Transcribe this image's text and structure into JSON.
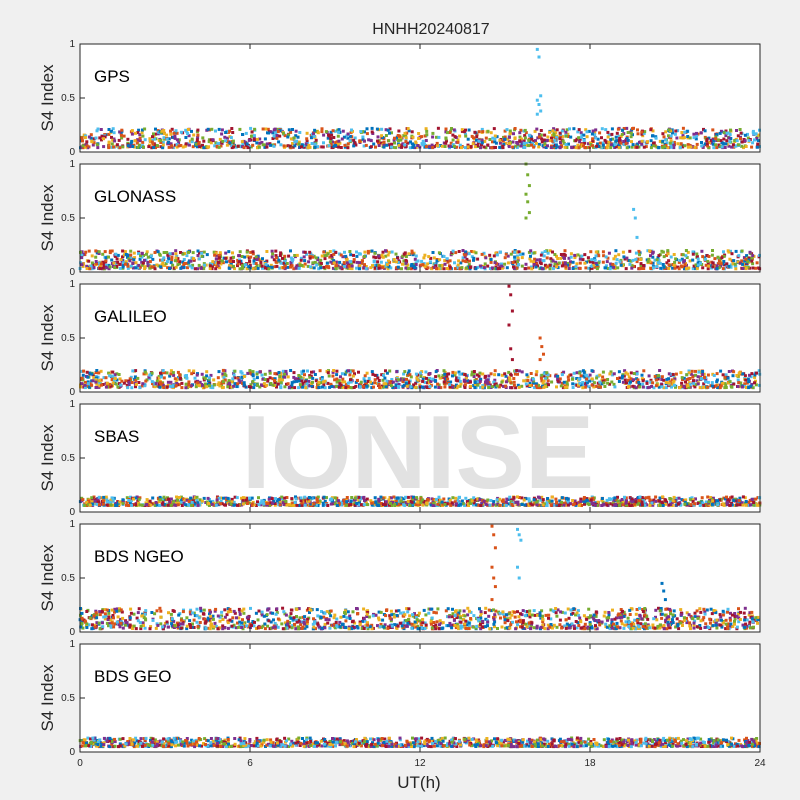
{
  "figure": {
    "title": "HNHH20240817",
    "xlabel": "UT(h)",
    "watermark": "IONISE",
    "background_color": "#f0f0f0",
    "axes_color": "#ffffff"
  },
  "chart_data": {
    "type": "scatter",
    "title": "HNHH20240817",
    "xlabel": "UT(h)",
    "ylabel": "S4 Index",
    "xlim": [
      0,
      24
    ],
    "ylim": [
      0,
      1
    ],
    "xticks": [
      "0",
      "6",
      "12",
      "18",
      "24"
    ],
    "yticks": [
      "0",
      "0.5",
      "1"
    ],
    "grid": false,
    "colors": [
      "#0072bd",
      "#d95319",
      "#edb120",
      "#7e2f8e",
      "#77ac30",
      "#4dbeee",
      "#a2142f"
    ],
    "panels": [
      {
        "label": "GPS",
        "baseline": [
          0.04,
          0.22
        ],
        "spikes": [
          {
            "x": 16.2,
            "values": [
              0.95,
              0.88,
              0.52,
              0.48,
              0.44,
              0.38,
              0.35
            ],
            "color": "#4dbeee"
          }
        ]
      },
      {
        "label": "GLONASS",
        "baseline": [
          0.03,
          0.2
        ],
        "spikes": [
          {
            "x": 15.8,
            "values": [
              1.0,
              0.9,
              0.8,
              0.72,
              0.65,
              0.55,
              0.5
            ],
            "color": "#77ac30"
          },
          {
            "x": 19.6,
            "values": [
              0.58,
              0.5,
              0.32
            ],
            "color": "#4dbeee"
          }
        ]
      },
      {
        "label": "GALILEO",
        "baseline": [
          0.04,
          0.2
        ],
        "spikes": [
          {
            "x": 15.2,
            "values": [
              0.98,
              0.9,
              0.75,
              0.62,
              0.4,
              0.3
            ],
            "color": "#a2142f"
          },
          {
            "x": 16.3,
            "values": [
              0.5,
              0.42,
              0.35,
              0.3
            ],
            "color": "#d95319"
          }
        ]
      },
      {
        "label": "SBAS",
        "baseline": [
          0.06,
          0.14
        ],
        "spikes": []
      },
      {
        "label": "BDS NGEO",
        "baseline": [
          0.03,
          0.22
        ],
        "spikes": [
          {
            "x": 14.6,
            "values": [
              0.98,
              0.9,
              0.78,
              0.6,
              0.5,
              0.42,
              0.3
            ],
            "color": "#d95319"
          },
          {
            "x": 15.5,
            "values": [
              0.95,
              0.9,
              0.85,
              0.6,
              0.5
            ],
            "color": "#4dbeee"
          },
          {
            "x": 20.6,
            "values": [
              0.45,
              0.38,
              0.3
            ],
            "color": "#0072bd"
          }
        ]
      },
      {
        "label": "BDS GEO",
        "baseline": [
          0.05,
          0.13
        ],
        "spikes": []
      }
    ]
  }
}
